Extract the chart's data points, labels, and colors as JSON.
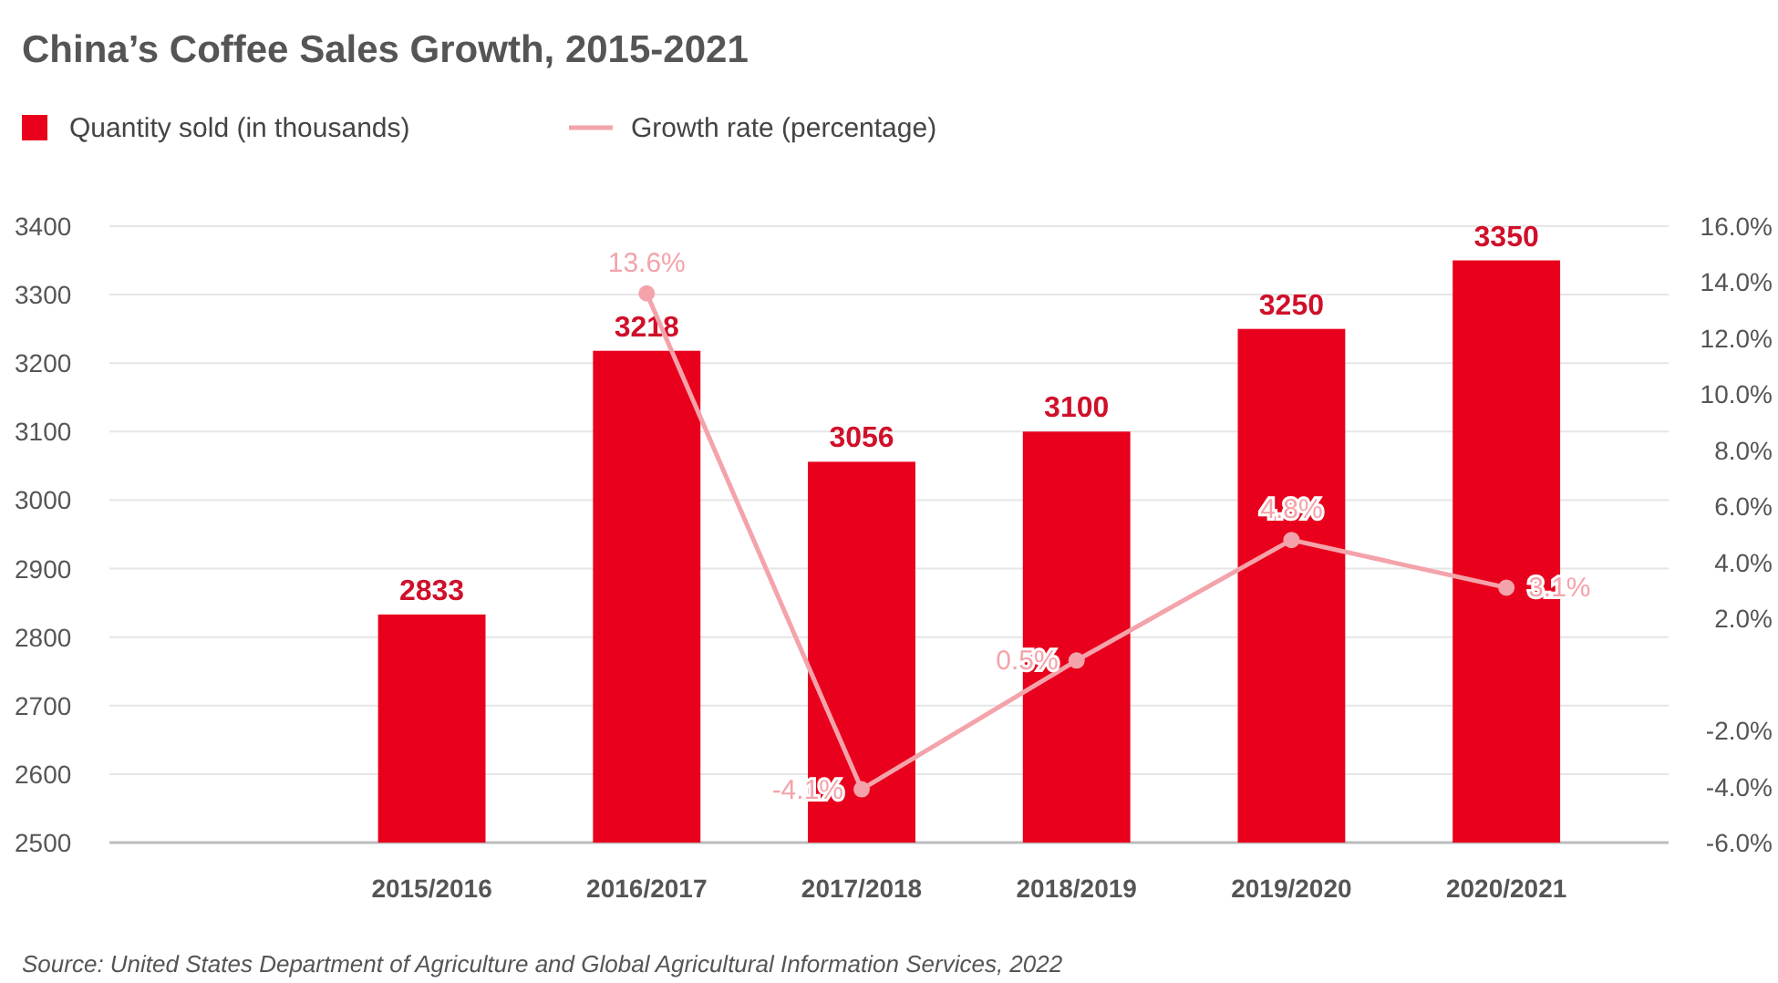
{
  "chart_data": {
    "type": "bar",
    "title": "China’s Coffee Sales Growth, 2015-2021",
    "categories": [
      null,
      "2015/2016",
      "2016/2017",
      "2017/2018",
      "2018/2019",
      "2019/2020",
      "2020/2021"
    ],
    "series": [
      {
        "name": "Quantity sold (in thousands)",
        "color": "#e8001c",
        "values": [
          null,
          2833,
          3218,
          3056,
          3100,
          3250,
          3350
        ]
      },
      {
        "name": "Growth rate (percentage)",
        "type": "line",
        "axis": "y2",
        "color": "#f4a3aa",
        "marker": "circle",
        "values": [
          null,
          null,
          13.6,
          -4.1,
          0.5,
          4.8,
          3.1
        ],
        "value_labels": [
          null,
          null,
          "13.6%",
          "-4.1%",
          "0.5%",
          "4.8%",
          "3.1%"
        ]
      }
    ],
    "ylim": [
      2500,
      3400
    ],
    "yticks": [
      2500,
      2600,
      2700,
      2800,
      2900,
      3000,
      3100,
      3200,
      3300,
      3400
    ],
    "y2lim": [
      -6,
      16
    ],
    "y2ticks": [
      {
        "value": -6,
        "label": "-6.0%"
      },
      {
        "value": -4,
        "label": "-4.0%"
      },
      {
        "value": -2,
        "label": "-2.0%"
      },
      {
        "value": 2,
        "label": "2.0%"
      },
      {
        "value": 4,
        "label": "4.0%"
      },
      {
        "value": 6,
        "label": "6.0%"
      },
      {
        "value": 8,
        "label": "8.0%"
      },
      {
        "value": 10,
        "label": "10.0%"
      },
      {
        "value": 12,
        "label": "12.0%"
      },
      {
        "value": 14,
        "label": "14.0%"
      },
      {
        "value": 16,
        "label": "16.0%"
      }
    ],
    "grid": "y",
    "legend": "top left",
    "data_labels": true,
    "annotations": [
      "Source: United States Department of Agriculture and Global Agricultural Information Services, 2022"
    ]
  }
}
